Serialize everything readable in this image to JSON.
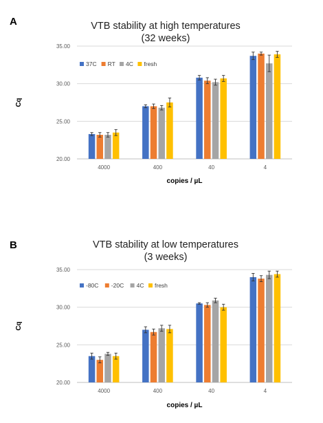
{
  "chart_data": [
    {
      "type": "bar",
      "panel_label": "A",
      "title_line1": "VTB stability at high temperatures",
      "title_line2": "(32 weeks)",
      "xlabel": "copies / µL",
      "ylabel": "Cq",
      "categories": [
        "4000",
        "400",
        "40",
        "4"
      ],
      "ylim": [
        20.0,
        35.0
      ],
      "yticks": [
        "20.00",
        "25.00",
        "30.00",
        "35.00"
      ],
      "grid": true,
      "legend_position": "top-left",
      "series": [
        {
          "name": "37C",
          "color": "#4472c4",
          "values": [
            23.3,
            27.0,
            30.8,
            33.7
          ],
          "errors": [
            0.2,
            0.2,
            0.3,
            0.5
          ]
        },
        {
          "name": "RT",
          "color": "#ed7d31",
          "values": [
            23.2,
            27.0,
            30.4,
            34.0
          ],
          "errors": [
            0.3,
            0.3,
            0.4,
            0.2
          ]
        },
        {
          "name": "4C",
          "color": "#a5a5a5",
          "values": [
            23.2,
            26.8,
            30.2,
            32.7
          ],
          "errors": [
            0.3,
            0.3,
            0.4,
            1.1
          ]
        },
        {
          "name": "fresh",
          "color": "#ffc000",
          "values": [
            23.5,
            27.5,
            30.7,
            33.9
          ],
          "errors": [
            0.4,
            0.6,
            0.4,
            0.4
          ]
        }
      ]
    },
    {
      "type": "bar",
      "panel_label": "B",
      "title_line1": "VTB stability at low temperatures",
      "title_line2": "(3 weeks)",
      "xlabel": "copies / µL",
      "ylabel": "Cq",
      "categories": [
        "4000",
        "400",
        "40",
        "4"
      ],
      "ylim": [
        20.0,
        35.0
      ],
      "yticks": [
        "20.00",
        "25.00",
        "30.00",
        "35.00"
      ],
      "grid": true,
      "legend_position": "top-left",
      "series": [
        {
          "name": "-80C",
          "color": "#4472c4",
          "values": [
            23.5,
            27.0,
            30.5,
            34.0
          ],
          "errors": [
            0.4,
            0.4,
            0.1,
            0.5
          ]
        },
        {
          "name": "-20C",
          "color": "#ed7d31",
          "values": [
            23.0,
            26.7,
            30.3,
            33.8
          ],
          "errors": [
            0.4,
            0.4,
            0.3,
            0.4
          ]
        },
        {
          "name": "4C",
          "color": "#a5a5a5",
          "values": [
            23.8,
            27.2,
            30.9,
            34.3
          ],
          "errors": [
            0.2,
            0.4,
            0.3,
            0.5
          ]
        },
        {
          "name": "fresh",
          "color": "#ffc000",
          "values": [
            23.5,
            27.1,
            30.0,
            34.4
          ],
          "errors": [
            0.4,
            0.5,
            0.4,
            0.4
          ]
        }
      ]
    }
  ]
}
